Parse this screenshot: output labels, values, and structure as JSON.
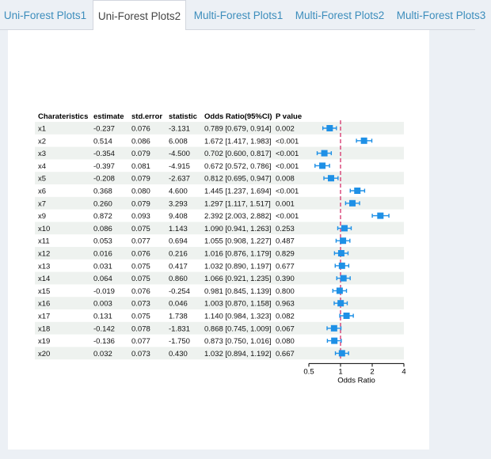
{
  "tabs": [
    {
      "label": "Uni-Forest Plots1",
      "active": false
    },
    {
      "label": "Uni-Forest Plots2",
      "active": true
    },
    {
      "label": "Multi-Forest Plots1",
      "active": false
    },
    {
      "label": "Multi-Forest Plots2",
      "active": false
    },
    {
      "label": "Multi-Forest Plots3",
      "active": false
    }
  ],
  "table": {
    "headers": [
      "Charateristics",
      "estimate",
      "std.error",
      "statistic",
      "Odds Ratio(95%CI)",
      "P value"
    ],
    "rows": [
      [
        "x1",
        "-0.237",
        "0.076",
        "-3.131",
        "0.789 [0.679, 0.914]",
        "0.002"
      ],
      [
        "x2",
        "0.514",
        "0.086",
        "6.008",
        "1.672 [1.417, 1.983]",
        "<0.001"
      ],
      [
        "x3",
        "-0.354",
        "0.079",
        "-4.500",
        "0.702 [0.600, 0.817]",
        "<0.001"
      ],
      [
        "x4",
        "-0.397",
        "0.081",
        "-4.915",
        "0.672 [0.572, 0.786]",
        "<0.001"
      ],
      [
        "x5",
        "-0.208",
        "0.079",
        "-2.637",
        "0.812 [0.695, 0.947]",
        "0.008"
      ],
      [
        "x6",
        "0.368",
        "0.080",
        "4.600",
        "1.445 [1.237, 1.694]",
        "<0.001"
      ],
      [
        "x7",
        "0.260",
        "0.079",
        "3.293",
        "1.297 [1.117, 1.517]",
        "0.001"
      ],
      [
        "x9",
        "0.872",
        "0.093",
        "9.408",
        "2.392 [2.003, 2.882]",
        "<0.001"
      ],
      [
        "x10",
        "0.086",
        "0.075",
        "1.143",
        "1.090 [0.941, 1.263]",
        "0.253"
      ],
      [
        "x11",
        "0.053",
        "0.077",
        "0.694",
        "1.055 [0.908, 1.227]",
        "0.487"
      ],
      [
        "x12",
        "0.016",
        "0.076",
        "0.216",
        "1.016 [0.876, 1.179]",
        "0.829"
      ],
      [
        "x13",
        "0.031",
        "0.075",
        "0.417",
        "1.032 [0.890, 1.197]",
        "0.677"
      ],
      [
        "x14",
        "0.064",
        "0.075",
        "0.860",
        "1.066 [0.921, 1.235]",
        "0.390"
      ],
      [
        "x15",
        "-0.019",
        "0.076",
        "-0.254",
        "0.981 [0.845, 1.139]",
        "0.800"
      ],
      [
        "x16",
        "0.003",
        "0.073",
        "0.046",
        "1.003 [0.870, 1.158]",
        "0.963"
      ],
      [
        "x17",
        "0.131",
        "0.075",
        "1.738",
        "1.140 [0.984, 1.323]",
        "0.082"
      ],
      [
        "x18",
        "-0.142",
        "0.078",
        "-1.831",
        "0.868 [0.745, 1.009]",
        "0.067"
      ],
      [
        "x19",
        "-0.136",
        "0.077",
        "-1.750",
        "0.873 [0.750, 1.016]",
        "0.080"
      ],
      [
        "x20",
        "0.032",
        "0.073",
        "0.430",
        "1.032 [0.894, 1.192]",
        "0.667"
      ]
    ]
  },
  "chart_data": {
    "type": "forest",
    "xlabel": "Odds Ratio",
    "x_scale": "log2",
    "xlim": [
      0.5,
      4
    ],
    "x_ticks": [
      "0.5",
      "1",
      "2",
      "4"
    ],
    "reference_line": 1,
    "series": [
      {
        "categories": [
          "x1",
          "x2",
          "x3",
          "x4",
          "x5",
          "x6",
          "x7",
          "x9",
          "x10",
          "x11",
          "x12",
          "x13",
          "x14",
          "x15",
          "x16",
          "x17",
          "x18",
          "x19",
          "x20"
        ],
        "or": [
          0.789,
          1.672,
          0.702,
          0.672,
          0.812,
          1.445,
          1.297,
          2.392,
          1.09,
          1.055,
          1.016,
          1.032,
          1.066,
          0.981,
          1.003,
          1.14,
          0.868,
          0.873,
          1.032
        ],
        "lower": [
          0.679,
          1.417,
          0.6,
          0.572,
          0.695,
          1.237,
          1.117,
          2.003,
          0.941,
          0.908,
          0.876,
          0.89,
          0.921,
          0.845,
          0.87,
          0.984,
          0.745,
          0.75,
          0.894
        ],
        "upper": [
          0.914,
          1.983,
          0.817,
          0.786,
          0.947,
          1.694,
          1.517,
          2.882,
          1.263,
          1.227,
          1.179,
          1.197,
          1.235,
          1.139,
          1.158,
          1.323,
          1.009,
          1.016,
          1.192
        ]
      }
    ]
  },
  "colors": {
    "point": "#1e90e6",
    "ref_line": "#d6306a",
    "stripe": "#eef2ef",
    "link": "#3c8dbc"
  }
}
